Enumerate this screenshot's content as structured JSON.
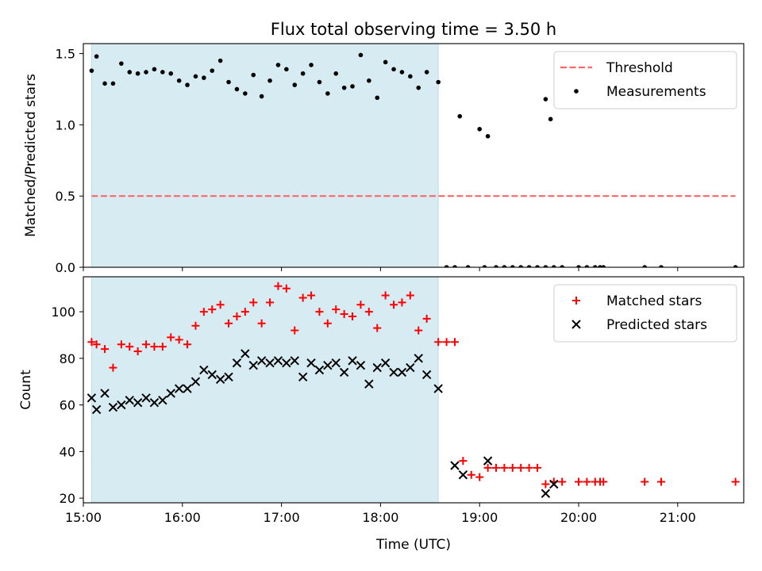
{
  "figure": {
    "title": "Flux total observing time = 3.50 h",
    "xlabel": "Time (UTC)"
  },
  "chart_data": [
    {
      "type": "scatter",
      "ylabel": "Matched/Predicted stars",
      "xlim": [
        "15:00",
        "21:40"
      ],
      "ylim": [
        0,
        1.57
      ],
      "yticks": [
        "0.0",
        "0.5",
        "1.0",
        "1.5"
      ],
      "xticks": [
        "15:00",
        "16:00",
        "17:00",
        "18:00",
        "19:00",
        "20:00",
        "21:00"
      ],
      "grid": false,
      "legend_position": "upper right",
      "shaded_interval": {
        "x": [
          "15:05",
          "18:35"
        ],
        "color": "#add8e6"
      },
      "threshold": {
        "name": "Threshold",
        "value": 0.5,
        "x": [
          "15:05",
          "21:35"
        ],
        "color": "#ff6666"
      },
      "series": [
        {
          "name": "Measurements",
          "marker": "dot",
          "color": "#000000",
          "x": [
            "15:05",
            "15:08",
            "15:13",
            "15:18",
            "15:23",
            "15:28",
            "15:33",
            "15:38",
            "15:43",
            "15:48",
            "15:53",
            "15:58",
            "16:03",
            "16:08",
            "16:13",
            "16:18",
            "16:23",
            "16:28",
            "16:33",
            "16:38",
            "16:43",
            "16:48",
            "16:53",
            "16:58",
            "17:03",
            "17:08",
            "17:13",
            "17:18",
            "17:23",
            "17:28",
            "17:33",
            "17:38",
            "17:43",
            "17:48",
            "17:53",
            "17:58",
            "18:03",
            "18:08",
            "18:13",
            "18:18",
            "18:23",
            "18:28",
            "18:35",
            "18:40",
            "18:45",
            "18:48",
            "18:53",
            "19:00",
            "19:03",
            "19:05",
            "19:10",
            "19:15",
            "19:20",
            "19:25",
            "19:30",
            "19:35",
            "19:40",
            "19:40",
            "19:43",
            "19:45",
            "19:50",
            "20:00",
            "20:05",
            "20:10",
            "20:13",
            "20:15",
            "20:40",
            "20:50",
            "21:35"
          ],
          "y": [
            1.38,
            1.48,
            1.29,
            1.29,
            1.43,
            1.37,
            1.36,
            1.37,
            1.39,
            1.37,
            1.36,
            1.31,
            1.28,
            1.34,
            1.33,
            1.38,
            1.45,
            1.3,
            1.25,
            1.22,
            1.35,
            1.2,
            1.31,
            1.42,
            1.39,
            1.28,
            1.36,
            1.42,
            1.3,
            1.22,
            1.36,
            1.26,
            1.27,
            1.49,
            1.31,
            1.19,
            1.44,
            1.39,
            1.37,
            1.34,
            1.26,
            1.37,
            1.3,
            0,
            0,
            1.06,
            0,
            0.97,
            0,
            0.92,
            0,
            0,
            0,
            0,
            0,
            0,
            1.18,
            0,
            1.04,
            0,
            0,
            0,
            0,
            0,
            0,
            0,
            0,
            0,
            0
          ]
        }
      ]
    },
    {
      "type": "scatter",
      "ylabel": "Count",
      "xlim": [
        "15:00",
        "21:40"
      ],
      "ylim": [
        18,
        115
      ],
      "yticks": [
        "20",
        "40",
        "60",
        "80",
        "100"
      ],
      "xticks": [
        "15:00",
        "16:00",
        "17:00",
        "18:00",
        "19:00",
        "20:00",
        "21:00"
      ],
      "grid": false,
      "legend_position": "upper right",
      "shaded_interval": {
        "x": [
          "15:05",
          "18:35"
        ],
        "color": "#add8e6"
      },
      "series": [
        {
          "name": "Matched stars",
          "marker": "plus",
          "color": "#ff0000",
          "x": [
            "15:05",
            "15:08",
            "15:13",
            "15:18",
            "15:23",
            "15:28",
            "15:33",
            "15:38",
            "15:43",
            "15:48",
            "15:53",
            "15:58",
            "16:03",
            "16:08",
            "16:13",
            "16:18",
            "16:23",
            "16:28",
            "16:33",
            "16:38",
            "16:43",
            "16:48",
            "16:53",
            "16:58",
            "17:03",
            "17:08",
            "17:13",
            "17:18",
            "17:23",
            "17:28",
            "17:33",
            "17:38",
            "17:43",
            "17:48",
            "17:53",
            "17:58",
            "18:03",
            "18:08",
            "18:13",
            "18:18",
            "18:23",
            "18:28",
            "18:35",
            "18:40",
            "18:45",
            "18:50",
            "18:55",
            "19:00",
            "19:05",
            "19:10",
            "19:15",
            "19:20",
            "19:25",
            "19:30",
            "19:35",
            "19:40",
            "19:45",
            "19:50",
            "20:00",
            "20:05",
            "20:10",
            "20:13",
            "20:15",
            "20:40",
            "20:50",
            "21:35"
          ],
          "y": [
            87,
            86,
            84,
            76,
            86,
            85,
            83,
            86,
            85,
            85,
            89,
            88,
            86,
            94,
            100,
            101,
            103,
            95,
            98,
            100,
            104,
            95,
            104,
            111,
            110,
            92,
            106,
            107,
            100,
            95,
            101,
            99,
            98,
            103,
            100,
            93,
            107,
            103,
            104,
            107,
            92,
            97,
            87,
            87,
            87,
            36,
            30,
            29,
            33,
            33,
            33,
            33,
            33,
            33,
            33,
            26,
            27,
            27,
            27,
            27,
            27,
            27,
            27,
            27,
            27,
            27
          ]
        },
        {
          "name": "Predicted stars",
          "marker": "x",
          "color": "#000000",
          "x": [
            "15:05",
            "15:08",
            "15:13",
            "15:18",
            "15:23",
            "15:28",
            "15:33",
            "15:38",
            "15:43",
            "15:48",
            "15:53",
            "15:58",
            "16:03",
            "16:08",
            "16:13",
            "16:18",
            "16:23",
            "16:28",
            "16:33",
            "16:38",
            "16:43",
            "16:48",
            "16:53",
            "16:58",
            "17:03",
            "17:08",
            "17:13",
            "17:18",
            "17:23",
            "17:28",
            "17:33",
            "17:38",
            "17:43",
            "17:48",
            "17:53",
            "17:58",
            "18:03",
            "18:08",
            "18:13",
            "18:18",
            "18:23",
            "18:28",
            "18:35",
            "18:45",
            "18:50",
            "19:05",
            "19:40",
            "19:45"
          ],
          "y": [
            63,
            58,
            65,
            59,
            60,
            62,
            61,
            63,
            61,
            62,
            65,
            67,
            67,
            70,
            75,
            73,
            71,
            72,
            78,
            82,
            77,
            79,
            78,
            79,
            78,
            79,
            72,
            78,
            75,
            77,
            78,
            74,
            79,
            77,
            69,
            76,
            78,
            74,
            74,
            76,
            80,
            73,
            67,
            34,
            30,
            36,
            22,
            26
          ]
        }
      ]
    }
  ]
}
